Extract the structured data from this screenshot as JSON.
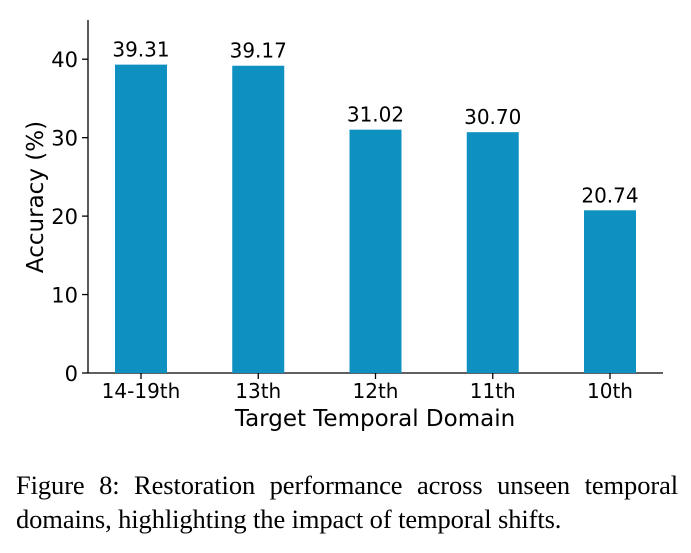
{
  "chart_data": {
    "type": "bar",
    "categories": [
      "14-19th",
      "13th",
      "12th",
      "11th",
      "10th"
    ],
    "values": [
      39.31,
      39.17,
      31.02,
      30.7,
      20.74
    ],
    "data_labels": [
      "39.31",
      "39.17",
      "31.02",
      "30.70",
      "20.74"
    ],
    "xlabel": "Target Temporal Domain",
    "ylabel": "Accuracy (%)",
    "ylim": [
      0,
      45
    ],
    "yticks": [
      0,
      10,
      20,
      30,
      40
    ],
    "bar_color": "#0e90c0",
    "grid": false,
    "legend": "none"
  },
  "caption": "Figure 8: Restoration performance across unseen temporal domains, highlighting the impact of temporal shifts."
}
